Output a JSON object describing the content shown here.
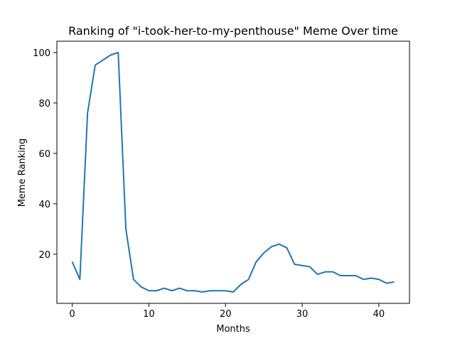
{
  "chart_data": {
    "type": "line",
    "title": "Ranking of \"i-took-her-to-my-penthouse\" Meme Over time",
    "xlabel": "Months",
    "ylabel": "Meme Ranking",
    "xlim": [
      -2,
      44
    ],
    "ylim": [
      0.5,
      104.5
    ],
    "xticks": [
      0,
      10,
      20,
      30,
      40
    ],
    "yticks": [
      20,
      40,
      60,
      80,
      100
    ],
    "grid": false,
    "line_color": "#1f77b4",
    "series": [
      {
        "x": [
          0,
          1,
          2,
          3,
          4,
          5,
          6,
          7,
          8,
          9,
          10,
          11,
          12,
          13,
          14,
          15,
          16,
          17,
          18,
          19,
          20,
          21,
          22,
          23,
          24,
          25,
          26,
          27,
          28,
          29,
          30,
          31,
          32,
          33,
          34,
          35,
          36,
          37,
          38,
          39,
          40,
          41,
          42
        ],
        "values": [
          17,
          10,
          76,
          95,
          97,
          99,
          100,
          30,
          10,
          7,
          5.5,
          5.5,
          6.5,
          5.5,
          6.5,
          5.5,
          5.5,
          5,
          5.5,
          5.5,
          5.5,
          5,
          8,
          10,
          17,
          20.5,
          23,
          24,
          22.5,
          16,
          15.5,
          15,
          12,
          13,
          13,
          11.5,
          11.5,
          11.5,
          10,
          10.5,
          10,
          8.5,
          9
        ]
      }
    ]
  }
}
